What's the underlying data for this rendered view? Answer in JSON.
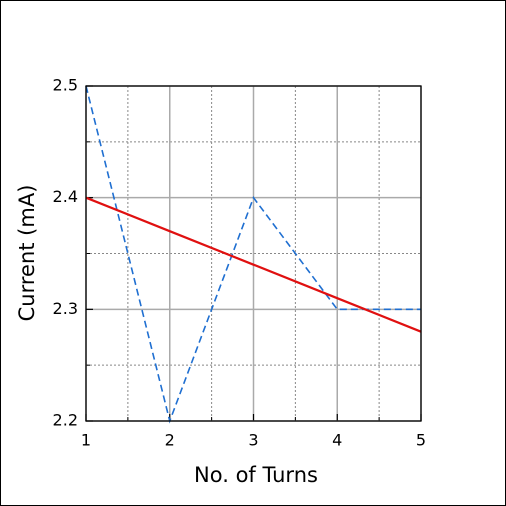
{
  "chart_data": {
    "type": "line",
    "x_label": "No. of Turns",
    "y_label": "Current (mA)",
    "x": [
      1,
      2,
      3,
      4,
      5
    ],
    "series": [
      {
        "color": "#1f6fd1",
        "style": "dashed",
        "values": [
          2.5,
          2.2,
          2.4,
          2.3,
          2.3
        ]
      },
      {
        "color": "#e01010",
        "style": "solid",
        "values": [
          2.4,
          2.37,
          2.34,
          2.31,
          2.28
        ]
      }
    ],
    "xlim": [
      1,
      5
    ],
    "ylim": [
      2.2,
      2.5
    ],
    "xticks": [
      1,
      2,
      3,
      4,
      5
    ],
    "yticks": [
      2.2,
      2.3,
      2.4,
      2.5
    ],
    "xminor": [
      1.5,
      2.5,
      3.5,
      4.5
    ],
    "yminor": [
      2.25,
      2.35,
      2.45
    ],
    "grid": true
  }
}
